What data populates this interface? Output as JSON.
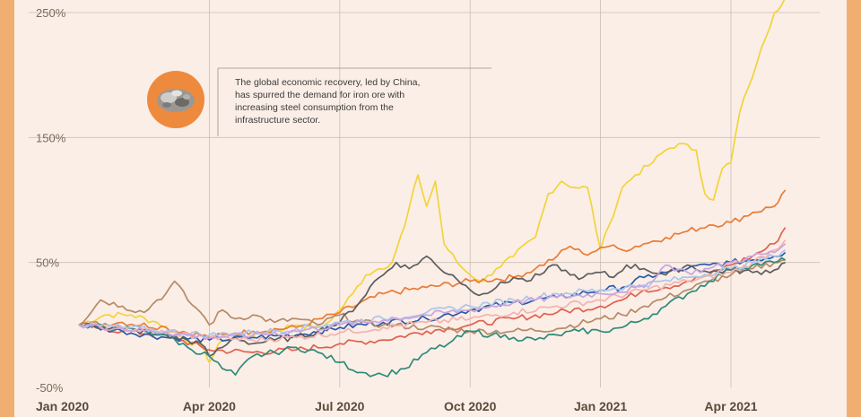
{
  "chart_data": {
    "type": "line",
    "title": "",
    "xlabel": "",
    "ylabel": "",
    "x_ticks": [
      "Jan 2020",
      "Apr 2020",
      "Jul 2020",
      "Oct 2020",
      "Jan 2021",
      "Apr 2021"
    ],
    "x_tick_values": [
      0,
      3,
      6,
      9,
      12,
      15
    ],
    "y_ticks": [
      "250%",
      "150%",
      "50%",
      "-50%"
    ],
    "y_tick_values": [
      250,
      150,
      50,
      -50
    ],
    "xlim": [
      0,
      16.3
    ],
    "ylim": [
      -50,
      250
    ],
    "grid": true,
    "annotation": {
      "text_lines": [
        "The global economic recovery, led by China,",
        "has spurred the demand for iron ore with",
        "increasing steel consumption from the",
        "infrastructure sector."
      ],
      "icon": "iron-ore-icon"
    },
    "series": [
      {
        "color": "#f2d33b",
        "points": [
          [
            0,
            0
          ],
          [
            0.6,
            8
          ],
          [
            1.2,
            8
          ],
          [
            1.8,
            2
          ],
          [
            2.4,
            -10
          ],
          [
            2.9,
            -20
          ],
          [
            3.0,
            -30
          ],
          [
            3.3,
            -12
          ],
          [
            3.8,
            -10
          ],
          [
            4.4,
            -5
          ],
          [
            5.0,
            0
          ],
          [
            5.6,
            -2
          ],
          [
            6.0,
            12
          ],
          [
            6.3,
            25
          ],
          [
            6.6,
            40
          ],
          [
            6.9,
            45
          ],
          [
            7.2,
            50
          ],
          [
            7.5,
            80
          ],
          [
            7.8,
            120
          ],
          [
            8.0,
            95
          ],
          [
            8.2,
            115
          ],
          [
            8.4,
            65
          ],
          [
            8.7,
            50
          ],
          [
            9.0,
            40
          ],
          [
            9.3,
            35
          ],
          [
            9.6,
            45
          ],
          [
            10.0,
            55
          ],
          [
            10.5,
            70
          ],
          [
            10.8,
            105
          ],
          [
            11.1,
            115
          ],
          [
            11.4,
            110
          ],
          [
            11.7,
            110
          ],
          [
            12.0,
            60
          ],
          [
            12.2,
            80
          ],
          [
            12.5,
            110
          ],
          [
            12.8,
            120
          ],
          [
            13.2,
            130
          ],
          [
            13.5,
            140
          ],
          [
            13.8,
            145
          ],
          [
            14.2,
            140
          ],
          [
            14.4,
            105
          ],
          [
            14.6,
            100
          ],
          [
            14.8,
            125
          ],
          [
            15.0,
            130
          ],
          [
            15.2,
            170
          ],
          [
            15.4,
            190
          ],
          [
            15.6,
            210
          ],
          [
            15.8,
            230
          ],
          [
            16.0,
            250
          ],
          [
            16.25,
            262
          ]
        ]
      },
      {
        "color": "#e87c38",
        "points": [
          [
            0,
            0
          ],
          [
            1,
            2
          ],
          [
            2,
            -2
          ],
          [
            3,
            -10
          ],
          [
            4,
            -5
          ],
          [
            5,
            -2
          ],
          [
            6,
            10
          ],
          [
            7,
            25
          ],
          [
            8,
            30
          ],
          [
            9,
            35
          ],
          [
            10,
            38
          ],
          [
            10.5,
            45
          ],
          [
            11,
            55
          ],
          [
            11.3,
            63
          ],
          [
            11.6,
            57
          ],
          [
            11.8,
            58
          ],
          [
            12.0,
            62
          ],
          [
            12.2,
            63
          ],
          [
            12.5,
            60
          ],
          [
            13,
            65
          ],
          [
            13.5,
            70
          ],
          [
            14,
            75
          ],
          [
            14.5,
            80
          ],
          [
            15,
            82
          ],
          [
            15.5,
            90
          ],
          [
            16,
            95
          ],
          [
            16.25,
            108
          ]
        ]
      },
      {
        "color": "#e06050",
        "points": [
          [
            0,
            0
          ],
          [
            1,
            -5
          ],
          [
            2,
            -8
          ],
          [
            3,
            -20
          ],
          [
            4,
            -22
          ],
          [
            5,
            -20
          ],
          [
            6,
            -15
          ],
          [
            7,
            -12
          ],
          [
            8,
            -5
          ],
          [
            9,
            0
          ],
          [
            10,
            5
          ],
          [
            11,
            10
          ],
          [
            12,
            15
          ],
          [
            12.5,
            20
          ],
          [
            13,
            28
          ],
          [
            13.5,
            30
          ],
          [
            14,
            35
          ],
          [
            14.5,
            40
          ],
          [
            15,
            48
          ],
          [
            15.5,
            55
          ],
          [
            16,
            65
          ],
          [
            16.25,
            78
          ]
        ]
      },
      {
        "color": "#2c5aa8",
        "points": [
          [
            0,
            0
          ],
          [
            1,
            -5
          ],
          [
            2,
            -10
          ],
          [
            3,
            -12
          ],
          [
            4,
            -10
          ],
          [
            5,
            -8
          ],
          [
            6,
            -2
          ],
          [
            7,
            2
          ],
          [
            8,
            5
          ],
          [
            9,
            12
          ],
          [
            10,
            18
          ],
          [
            11,
            22
          ],
          [
            12,
            28
          ],
          [
            12.5,
            30
          ],
          [
            13,
            38
          ],
          [
            13.5,
            42
          ],
          [
            14,
            45
          ],
          [
            14.5,
            48
          ],
          [
            15,
            50
          ],
          [
            15.5,
            52
          ],
          [
            16,
            55
          ],
          [
            16.25,
            58
          ]
        ]
      },
      {
        "color": "#b58a68",
        "points": [
          [
            0,
            0
          ],
          [
            0.5,
            20
          ],
          [
            1,
            15
          ],
          [
            1.5,
            10
          ],
          [
            1.8,
            20
          ],
          [
            2,
            25
          ],
          [
            2.2,
            35
          ],
          [
            2.5,
            20
          ],
          [
            2.8,
            10
          ],
          [
            3,
            0
          ],
          [
            3.3,
            12
          ],
          [
            3.6,
            5
          ],
          [
            4,
            8
          ],
          [
            4.5,
            2
          ],
          [
            5,
            5
          ],
          [
            5.5,
            0
          ],
          [
            6,
            8
          ],
          [
            6.5,
            2
          ],
          [
            7,
            0
          ],
          [
            8,
            -2
          ],
          [
            9,
            -5
          ],
          [
            10,
            -5
          ],
          [
            11,
            -3
          ],
          [
            12,
            5
          ],
          [
            12.5,
            8
          ],
          [
            13,
            15
          ],
          [
            13.5,
            22
          ],
          [
            14,
            28
          ],
          [
            14.5,
            35
          ],
          [
            15,
            40
          ],
          [
            15.5,
            45
          ],
          [
            16,
            50
          ],
          [
            16.25,
            52
          ]
        ]
      },
      {
        "color": "#5d5d5d",
        "points": [
          [
            0,
            0
          ],
          [
            1,
            -3
          ],
          [
            2,
            -8
          ],
          [
            2.8,
            -15
          ],
          [
            3,
            -25
          ],
          [
            3.3,
            -18
          ],
          [
            3.6,
            -10
          ],
          [
            4,
            -15
          ],
          [
            4.5,
            -12
          ],
          [
            5,
            -10
          ],
          [
            5.5,
            -5
          ],
          [
            6,
            2
          ],
          [
            6.5,
            20
          ],
          [
            6.8,
            35
          ],
          [
            7.0,
            40
          ],
          [
            7.3,
            50
          ],
          [
            7.6,
            45
          ],
          [
            8,
            55
          ],
          [
            8.3,
            45
          ],
          [
            8.6,
            40
          ],
          [
            9,
            28
          ],
          [
            9.3,
            25
          ],
          [
            9.6,
            30
          ],
          [
            10,
            38
          ],
          [
            10.3,
            35
          ],
          [
            10.6,
            40
          ],
          [
            11,
            48
          ],
          [
            11.3,
            40
          ],
          [
            11.6,
            38
          ],
          [
            12,
            42
          ],
          [
            12.3,
            38
          ],
          [
            12.6,
            48
          ],
          [
            13,
            45
          ],
          [
            13.5,
            40
          ],
          [
            14,
            48
          ],
          [
            14.5,
            42
          ],
          [
            15,
            44
          ],
          [
            15.5,
            42
          ],
          [
            16,
            44
          ],
          [
            16.25,
            50
          ]
        ]
      },
      {
        "color": "#2f8a7a",
        "points": [
          [
            0,
            0
          ],
          [
            1,
            -3
          ],
          [
            1.5,
            -5
          ],
          [
            2,
            -8
          ],
          [
            2.5,
            -18
          ],
          [
            3,
            -25
          ],
          [
            3.3,
            -35
          ],
          [
            3.6,
            -40
          ],
          [
            4,
            -25
          ],
          [
            4.5,
            -22
          ],
          [
            5,
            -18
          ],
          [
            5.5,
            -22
          ],
          [
            6,
            -30
          ],
          [
            6.5,
            -38
          ],
          [
            7,
            -40
          ],
          [
            7.5,
            -35
          ],
          [
            8,
            -22
          ],
          [
            8.5,
            -15
          ],
          [
            9,
            -5
          ],
          [
            9.5,
            -8
          ],
          [
            10,
            -10
          ],
          [
            10.5,
            -12
          ],
          [
            11,
            -8
          ],
          [
            11.5,
            -5
          ],
          [
            12,
            -5
          ],
          [
            12.5,
            -2
          ],
          [
            13,
            5
          ],
          [
            13.5,
            15
          ],
          [
            14,
            25
          ],
          [
            14.5,
            35
          ],
          [
            15,
            45
          ],
          [
            15.5,
            48
          ],
          [
            16,
            50
          ],
          [
            16.25,
            52
          ]
        ]
      },
      {
        "color": "#f2b3b0",
        "points": [
          [
            0,
            0
          ],
          [
            1,
            -3
          ],
          [
            2,
            -6
          ],
          [
            3,
            -10
          ],
          [
            4,
            -12
          ],
          [
            5,
            -10
          ],
          [
            6,
            -6
          ],
          [
            7,
            -2
          ],
          [
            8,
            2
          ],
          [
            9,
            5
          ],
          [
            10,
            10
          ],
          [
            11,
            15
          ],
          [
            12,
            20
          ],
          [
            13,
            28
          ],
          [
            14,
            35
          ],
          [
            15,
            42
          ],
          [
            15.5,
            50
          ],
          [
            16,
            60
          ],
          [
            16.25,
            68
          ]
        ]
      },
      {
        "color": "#aac6ea",
        "points": [
          [
            0,
            0
          ],
          [
            1,
            -2
          ],
          [
            2,
            -5
          ],
          [
            3,
            -8
          ],
          [
            4,
            -6
          ],
          [
            5,
            -3
          ],
          [
            6,
            2
          ],
          [
            7,
            5
          ],
          [
            8,
            10
          ],
          [
            9,
            15
          ],
          [
            10,
            20
          ],
          [
            11,
            25
          ],
          [
            12,
            28
          ],
          [
            13,
            32
          ],
          [
            14,
            38
          ],
          [
            15,
            45
          ],
          [
            15.5,
            50
          ],
          [
            16,
            55
          ],
          [
            16.25,
            60
          ]
        ]
      },
      {
        "color": "#c8a4e0",
        "points": [
          [
            0,
            0
          ],
          [
            1,
            -3
          ],
          [
            2,
            -6
          ],
          [
            3,
            -10
          ],
          [
            4,
            -8
          ],
          [
            5,
            -5
          ],
          [
            6,
            0
          ],
          [
            7,
            4
          ],
          [
            8,
            8
          ],
          [
            9,
            12
          ],
          [
            10,
            18
          ],
          [
            11,
            22
          ],
          [
            12,
            25
          ],
          [
            13,
            30
          ],
          [
            13.5,
            48
          ],
          [
            14,
            42
          ],
          [
            14.5,
            45
          ],
          [
            15,
            50
          ],
          [
            15.5,
            55
          ],
          [
            16,
            58
          ],
          [
            16.25,
            65
          ]
        ]
      }
    ]
  }
}
